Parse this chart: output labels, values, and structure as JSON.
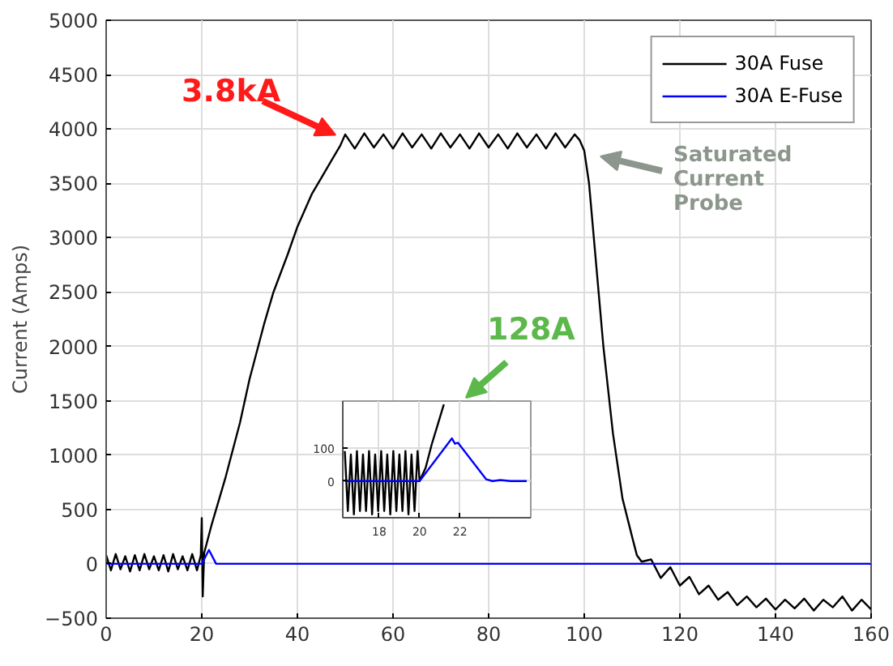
{
  "chart_data": [
    {
      "type": "line",
      "ylabel": "Current (Amps)",
      "xlim": [
        0,
        160
      ],
      "ylim": [
        -500,
        5000
      ],
      "xticks": [
        0,
        20,
        40,
        60,
        80,
        100,
        120,
        140,
        160
      ],
      "yticks": [
        -500,
        0,
        500,
        1000,
        1500,
        2000,
        2500,
        3000,
        3500,
        4000,
        4500,
        5000
      ],
      "grid": true,
      "legend": "top right",
      "series": [
        {
          "name": "30A Fuse",
          "color": "#000000",
          "x": [
            0,
            1,
            2,
            3,
            4,
            5,
            6,
            7,
            8,
            9,
            10,
            11,
            12,
            13,
            14,
            15,
            16,
            17,
            18,
            19,
            19.8,
            20,
            20.2,
            20.5,
            22,
            25,
            28,
            30,
            33,
            35,
            38,
            40,
            43,
            45,
            47,
            49,
            50,
            52,
            54,
            56,
            58,
            60,
            62,
            64,
            66,
            68,
            70,
            72,
            74,
            76,
            78,
            80,
            82,
            84,
            86,
            88,
            90,
            92,
            94,
            96,
            98,
            99,
            100,
            101,
            102,
            104,
            106,
            108,
            110,
            111,
            112,
            114,
            116,
            118,
            120,
            122,
            124,
            126,
            128,
            130,
            132,
            134,
            136,
            138,
            140,
            142,
            144,
            146,
            148,
            150,
            152,
            154,
            156,
            158,
            160
          ],
          "values": [
            80,
            -60,
            90,
            -50,
            70,
            -70,
            80,
            -60,
            90,
            -50,
            70,
            -60,
            80,
            -70,
            90,
            -50,
            70,
            -60,
            90,
            -60,
            80,
            420,
            -300,
            100,
            350,
            800,
            1300,
            1700,
            2200,
            2500,
            2850,
            3100,
            3400,
            3550,
            3700,
            3850,
            3950,
            3820,
            3960,
            3830,
            3950,
            3820,
            3960,
            3830,
            3950,
            3820,
            3960,
            3830,
            3950,
            3820,
            3960,
            3830,
            3950,
            3820,
            3960,
            3830,
            3950,
            3820,
            3960,
            3830,
            3950,
            3900,
            3800,
            3500,
            3000,
            2000,
            1200,
            600,
            250,
            80,
            20,
            40,
            -130,
            -30,
            -200,
            -120,
            -280,
            -200,
            -330,
            -260,
            -380,
            -300,
            -400,
            -320,
            -420,
            -330,
            -410,
            -320,
            -430,
            -330,
            -400,
            -300,
            -430,
            -330,
            -420
          ]
        },
        {
          "name": "30A E-Fuse",
          "color": "#0000ff",
          "x": [
            0,
            10,
            20,
            21.5,
            23,
            40,
            60,
            80,
            100,
            120,
            140,
            160
          ],
          "values": [
            0,
            0,
            0,
            128,
            0,
            0,
            0,
            0,
            0,
            0,
            0,
            0
          ]
        }
      ],
      "annotations": [
        {
          "text": "3.8kA",
          "x": 49,
          "y": 3900
        },
        "Saturated Current Probe",
        "128A"
      ]
    },
    {
      "type": "line",
      "xlim": [
        16.2,
        25.5
      ],
      "ylim": [
        -110,
        240
      ],
      "xticks": [
        18,
        20,
        22
      ],
      "yticks": [
        0,
        100
      ],
      "grid": true,
      "series": [
        {
          "color": "#000000",
          "x": [
            16.3,
            16.45,
            16.6,
            16.75,
            16.9,
            17.05,
            17.2,
            17.35,
            17.5,
            17.65,
            17.8,
            17.95,
            18.1,
            18.25,
            18.4,
            18.55,
            18.7,
            18.85,
            19.0,
            19.15,
            19.3,
            19.45,
            19.6,
            19.75,
            19.9,
            20.0,
            20.3,
            20.6,
            20.9,
            21.2
          ],
          "values": [
            90,
            -90,
            80,
            -100,
            90,
            -90,
            80,
            -90,
            90,
            -100,
            80,
            -90,
            90,
            -90,
            80,
            -100,
            90,
            -90,
            80,
            -90,
            90,
            -100,
            80,
            -90,
            90,
            0,
            40,
            110,
            170,
            230
          ]
        },
        {
          "color": "#0000ff",
          "x": [
            16.3,
            17,
            18,
            19,
            20,
            21.6,
            21.75,
            21.9,
            23.3,
            23.6,
            24,
            24.5,
            25.3
          ],
          "values": [
            0,
            0,
            0,
            0,
            0,
            128,
            112,
            115,
            5,
            0,
            3,
            0,
            0
          ]
        }
      ]
    }
  ]
}
